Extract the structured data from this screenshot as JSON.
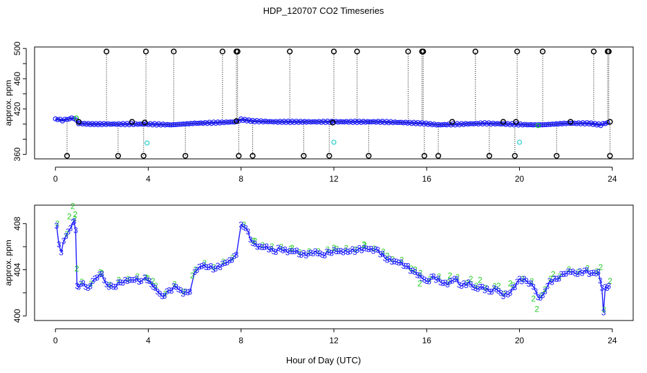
{
  "chart_data": [
    {
      "type": "scatter",
      "id": "top",
      "title": "HDP_120707  CO2 Timeseries",
      "xlabel": "",
      "ylabel": "approx. ppm",
      "xlim": [
        -0.9,
        24.9
      ],
      "ylim": [
        354,
        502
      ],
      "xticks": [
        0,
        4,
        8,
        12,
        16,
        20,
        24
      ],
      "yticks": [
        360,
        380,
        400,
        420,
        440,
        460,
        480,
        500
      ],
      "ytick_labels": [
        "360",
        "",
        "",
        "420",
        "",
        "460",
        "",
        "500"
      ],
      "colors": {
        "main": "#1a1aff",
        "outlier": "#000000",
        "cyan": "#22cccc",
        "green": "#22cc22",
        "line": "#000080"
      },
      "baseline_points": [
        [
          0.0,
          407
        ],
        [
          0.3,
          405
        ],
        [
          0.6,
          407
        ],
        [
          0.8,
          408
        ],
        [
          1.0,
          401
        ],
        [
          1.5,
          400
        ],
        [
          2.0,
          400
        ],
        [
          3.0,
          400
        ],
        [
          4.0,
          400
        ],
        [
          5.0,
          399
        ],
        [
          5.5,
          400
        ],
        [
          6.0,
          401
        ],
        [
          7.0,
          402
        ],
        [
          7.8,
          403
        ],
        [
          8.0,
          406
        ],
        [
          8.5,
          404
        ],
        [
          9.5,
          403
        ],
        [
          11.0,
          403
        ],
        [
          12.0,
          403
        ],
        [
          13.0,
          403
        ],
        [
          14.0,
          403
        ],
        [
          15.0,
          402
        ],
        [
          15.8,
          401
        ],
        [
          16.5,
          399
        ],
        [
          17.5,
          400
        ],
        [
          18.5,
          401
        ],
        [
          19.5,
          400
        ],
        [
          20.5,
          399
        ],
        [
          21.0,
          399
        ],
        [
          21.5,
          400
        ],
        [
          22.0,
          401
        ],
        [
          23.0,
          401
        ],
        [
          23.5,
          399
        ],
        [
          23.8,
          402
        ]
      ],
      "high_outliers": [
        2.2,
        3.9,
        5.1,
        7.2,
        7.8,
        7.85,
        10.1,
        12.0,
        13.0,
        15.2,
        15.8,
        15.85,
        18.1,
        19.9,
        21.0,
        23.2,
        23.8,
        23.85
      ],
      "low_outliers": [
        0.5,
        2.7,
        3.8,
        5.6,
        7.9,
        8.5,
        10.7,
        11.8,
        13.5,
        15.9,
        16.5,
        18.7,
        19.8,
        21.6,
        23.9
      ],
      "mid_outliers": [
        [
          1.0,
          403
        ],
        [
          3.3,
          403
        ],
        [
          3.85,
          402
        ],
        [
          7.8,
          404
        ],
        [
          11.95,
          402
        ],
        [
          17.1,
          403
        ],
        [
          19.3,
          403
        ],
        [
          19.85,
          403
        ],
        [
          22.2,
          403
        ],
        [
          23.9,
          403
        ]
      ],
      "cyan_points": [
        [
          3.95,
          375
        ],
        [
          12.0,
          376
        ],
        [
          20.0,
          376
        ]
      ],
      "green_points": [
        [
          0.9,
          408
        ],
        [
          20.8,
          398
        ]
      ]
    },
    {
      "type": "line",
      "id": "bottom",
      "xlabel": "Hour of Day (UTC)",
      "ylabel": "approx. ppm",
      "xlim": [
        -0.9,
        24.9
      ],
      "ylim": [
        399.6,
        409.6
      ],
      "xticks": [
        0,
        4,
        8,
        12,
        16,
        20,
        24
      ],
      "yticks": [
        400,
        402,
        404,
        406,
        408
      ],
      "ytick_labels": [
        "400",
        "",
        "404",
        "",
        "408"
      ],
      "colors": {
        "series3": "#1a1aff",
        "series2": "#22cc22"
      },
      "series": [
        {
          "name": "3",
          "marker": "3",
          "points": [
            [
              0.05,
              407.8
            ],
            [
              0.15,
              406.2
            ],
            [
              0.25,
              405.5
            ],
            [
              0.35,
              406.5
            ],
            [
              0.45,
              406.9
            ],
            [
              0.55,
              407.3
            ],
            [
              0.65,
              407.6
            ],
            [
              0.75,
              408.1
            ],
            [
              0.8,
              408.2
            ],
            [
              0.87,
              407.4
            ],
            [
              0.93,
              402.6
            ],
            [
              1.0,
              402.5
            ],
            [
              1.2,
              402.8
            ],
            [
              1.4,
              402.4
            ],
            [
              1.6,
              403.0
            ],
            [
              1.8,
              403.3
            ],
            [
              2.0,
              403.6
            ],
            [
              2.2,
              402.7
            ],
            [
              2.5,
              402.5
            ],
            [
              2.8,
              402.9
            ],
            [
              3.1,
              403.0
            ],
            [
              3.4,
              403.1
            ],
            [
              3.7,
              403.0
            ],
            [
              3.85,
              403.3
            ],
            [
              4.05,
              403.0
            ],
            [
              4.3,
              402.4
            ],
            [
              4.6,
              401.7
            ],
            [
              4.9,
              402.2
            ],
            [
              5.2,
              402.5
            ],
            [
              5.5,
              401.9
            ],
            [
              5.8,
              402.1
            ],
            [
              6.0,
              403.8
            ],
            [
              6.3,
              404.3
            ],
            [
              6.6,
              404.2
            ],
            [
              6.9,
              404.1
            ],
            [
              7.2,
              404.5
            ],
            [
              7.5,
              404.8
            ],
            [
              7.8,
              405.3
            ],
            [
              8.0,
              407.9
            ],
            [
              8.2,
              407.6
            ],
            [
              8.5,
              406.3
            ],
            [
              8.8,
              406.0
            ],
            [
              9.1,
              406.0
            ],
            [
              9.4,
              405.6
            ],
            [
              9.7,
              405.8
            ],
            [
              10.0,
              405.5
            ],
            [
              10.3,
              405.6
            ],
            [
              10.6,
              405.3
            ],
            [
              10.9,
              405.4
            ],
            [
              11.2,
              405.6
            ],
            [
              11.5,
              405.3
            ],
            [
              11.8,
              405.5
            ],
            [
              12.1,
              405.6
            ],
            [
              12.4,
              405.5
            ],
            [
              12.7,
              405.6
            ],
            [
              13.0,
              405.7
            ],
            [
              13.3,
              405.9
            ],
            [
              13.6,
              405.8
            ],
            [
              13.9,
              405.7
            ],
            [
              14.2,
              405.0
            ],
            [
              14.5,
              404.7
            ],
            [
              14.8,
              404.6
            ],
            [
              15.1,
              404.3
            ],
            [
              15.4,
              403.9
            ],
            [
              15.7,
              403.5
            ],
            [
              16.0,
              403.0
            ],
            [
              16.3,
              403.4
            ],
            [
              16.6,
              402.9
            ],
            [
              16.9,
              402.7
            ],
            [
              17.2,
              403.2
            ],
            [
              17.5,
              402.6
            ],
            [
              17.8,
              402.9
            ],
            [
              18.1,
              402.4
            ],
            [
              18.4,
              402.5
            ],
            [
              18.7,
              402.1
            ],
            [
              19.0,
              402.3
            ],
            [
              19.3,
              401.7
            ],
            [
              19.6,
              402.0
            ],
            [
              20.0,
              403.2
            ],
            [
              20.3,
              403.0
            ],
            [
              20.6,
              402.5
            ],
            [
              20.8,
              401.6
            ],
            [
              21.0,
              401.8
            ],
            [
              21.3,
              403.0
            ],
            [
              21.6,
              403.2
            ],
            [
              21.9,
              403.6
            ],
            [
              22.2,
              403.8
            ],
            [
              22.5,
              403.6
            ],
            [
              22.8,
              403.9
            ],
            [
              23.1,
              403.7
            ],
            [
              23.4,
              403.8
            ],
            [
              23.55,
              402.4
            ],
            [
              23.62,
              400.3
            ],
            [
              23.7,
              402.5
            ],
            [
              23.85,
              402.6
            ]
          ]
        },
        {
          "name": "2",
          "marker": "2",
          "points": [
            [
              0.6,
              408.6
            ],
            [
              0.75,
              409.5
            ],
            [
              0.85,
              408.8
            ],
            [
              0.92,
              404.1
            ],
            [
              2.0,
              403.7
            ],
            [
              3.9,
              403.3
            ],
            [
              4.2,
              403.0
            ],
            [
              5.9,
              403.5
            ],
            [
              8.6,
              406.5
            ],
            [
              10.2,
              405.9
            ],
            [
              12.0,
              405.9
            ],
            [
              13.3,
              406.2
            ],
            [
              14.3,
              405.2
            ],
            [
              15.5,
              404.0
            ],
            [
              15.7,
              402.8
            ],
            [
              17.0,
              403.5
            ],
            [
              17.9,
              403.2
            ],
            [
              18.3,
              403.1
            ],
            [
              19.1,
              402.6
            ],
            [
              19.6,
              402.8
            ],
            [
              20.6,
              401.5
            ],
            [
              20.75,
              400.6
            ],
            [
              21.1,
              402.3
            ],
            [
              21.45,
              403.6
            ],
            [
              23.5,
              404.2
            ],
            [
              23.9,
              403.0
            ]
          ]
        }
      ]
    }
  ]
}
